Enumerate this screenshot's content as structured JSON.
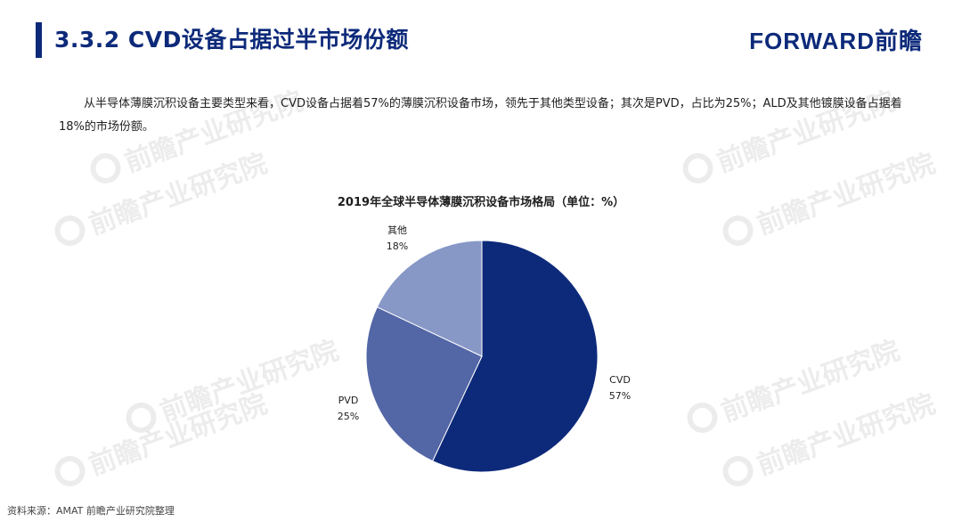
{
  "header": {
    "title": "3.3.2 CVD设备占据过半市场份额",
    "logo": "FORWARD前瞻"
  },
  "intro": {
    "text": "从半导体薄膜沉积设备主要类型来看，CVD设备占据着57%的薄膜沉积设备市场，领先于其他类型设备；其次是PVD，占比为25%；ALD及其他镀膜设备占据着18%的市场份额。"
  },
  "watermark": {
    "text": "前瞻产业研究院"
  },
  "chart_data": {
    "type": "pie",
    "title": "2019年全球半导体薄膜沉积设备市场格局（单位：%）",
    "slices": [
      {
        "name": "CVD",
        "value": 57,
        "color": "#0d2a7a",
        "label_value": "57%"
      },
      {
        "name": "PVD",
        "value": 25,
        "color": "#5366a6",
        "label_value": "25%"
      },
      {
        "name": "其他",
        "value": 18,
        "color": "#8797c6",
        "label_value": "18%"
      }
    ],
    "start": "12 o'clock",
    "direction": "clockwise"
  },
  "source": {
    "text": "资料来源：AMAT 前瞻产业研究院整理"
  }
}
